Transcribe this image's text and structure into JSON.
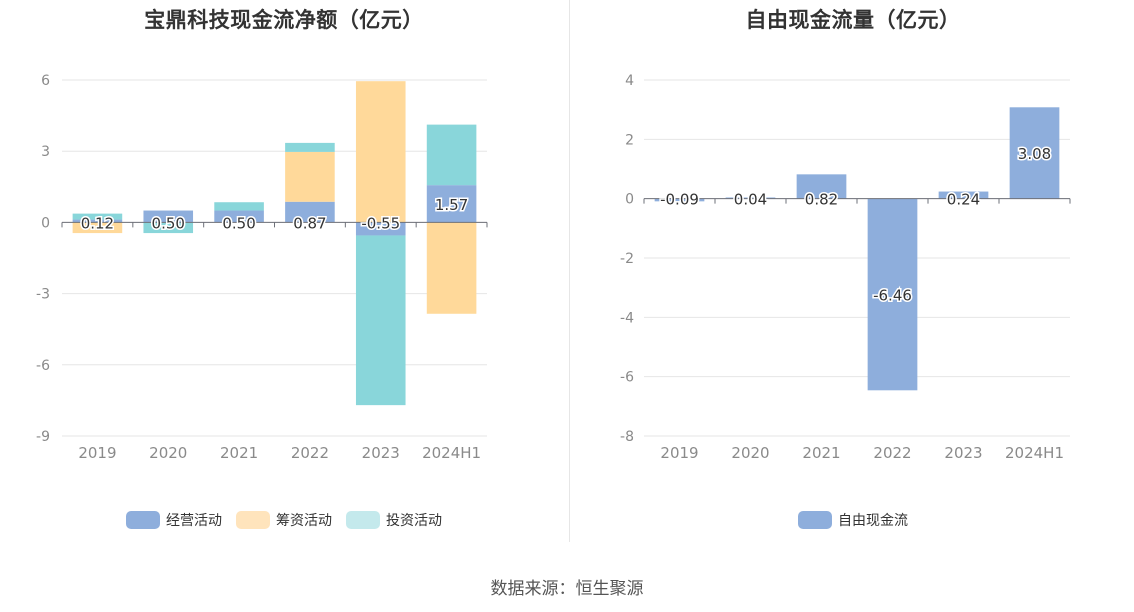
{
  "source_label": "数据来源：恒生聚源",
  "chart_data": [
    {
      "type": "bar",
      "stacked": true,
      "title": "宝鼎科技现金流净额（亿元）",
      "categories": [
        "2019",
        "2020",
        "2021",
        "2022",
        "2023",
        "2024H1"
      ],
      "ylim": [
        -9,
        6
      ],
      "yticks": [
        6,
        3,
        0,
        -3,
        -6,
        -9
      ],
      "grid": true,
      "legend_position": "bottom",
      "series": [
        {
          "name": "经营活动",
          "color": "#8eaedc",
          "legend_color": "#8eaedc",
          "values": [
            0.12,
            0.5,
            0.5,
            0.87,
            -0.55,
            1.57
          ],
          "labels": [
            "0.12",
            "0.50",
            "0.50",
            "0.87",
            "-0.55",
            "1.57"
          ]
        },
        {
          "name": "筹资活动",
          "color": "#ffd99a",
          "legend_color": "#ffe4bc",
          "values": [
            -0.45,
            0.0,
            0.0,
            2.1,
            5.95,
            -3.85
          ]
        },
        {
          "name": "投资活动",
          "color": "#89d6da",
          "legend_color": "#c4e9ec",
          "values": [
            0.25,
            -0.45,
            0.35,
            0.38,
            -7.15,
            2.55
          ]
        }
      ]
    },
    {
      "type": "bar",
      "title": "自由现金流量（亿元）",
      "categories": [
        "2019",
        "2020",
        "2021",
        "2022",
        "2023",
        "2024H1"
      ],
      "ylim": [
        -8,
        4
      ],
      "yticks": [
        4,
        2,
        0,
        -2,
        -4,
        -6,
        -8
      ],
      "grid": true,
      "legend_position": "bottom",
      "series": [
        {
          "name": "自由现金流",
          "color": "#8eaedc",
          "legend_color": "#8eaedc",
          "values": [
            -0.09,
            0.04,
            0.82,
            -6.46,
            0.24,
            3.08
          ],
          "labels": [
            "-0.09",
            "0.04",
            "0.82",
            "-6.46",
            "0.24",
            "3.08"
          ]
        }
      ]
    }
  ]
}
